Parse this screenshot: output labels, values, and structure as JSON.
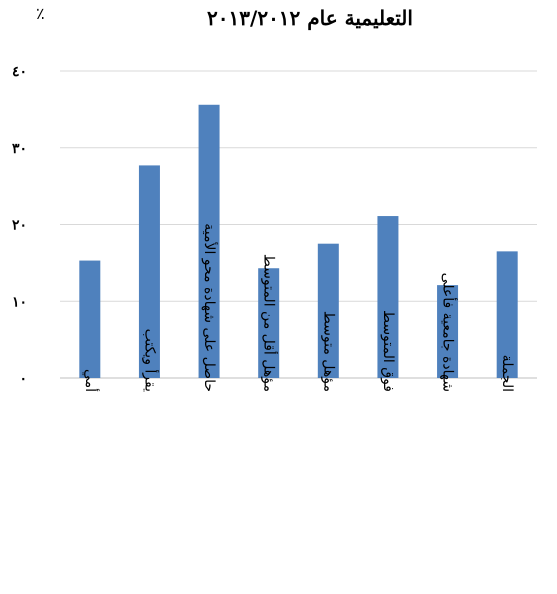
{
  "chart_data": {
    "type": "bar",
    "title": "التعليمية عام ٢٠١٣/٢٠١٢",
    "unit_label": "٪",
    "categories": [
      "أمي",
      "يقرأ ويكتب",
      "حاصل على شهادة محو الأمية",
      "مؤهل أقل من المتوسط",
      "مؤهل متوسط",
      "فوق المتوسط",
      "شهادة جامعية فأعلى",
      "الجملة"
    ],
    "values": [
      15.3,
      27.7,
      35.6,
      14.3,
      17.5,
      21.1,
      12.1,
      16.5
    ],
    "ylim": [
      0,
      40
    ],
    "yticks": [
      0,
      10,
      20,
      30,
      40
    ],
    "ytick_labels": [
      "٠",
      "١٠",
      "٢٠",
      "٣٠",
      "٤٠"
    ],
    "grid": true,
    "legend": "none",
    "bar_color": "#4F81BD",
    "grid_color": "#D9D9D9"
  }
}
